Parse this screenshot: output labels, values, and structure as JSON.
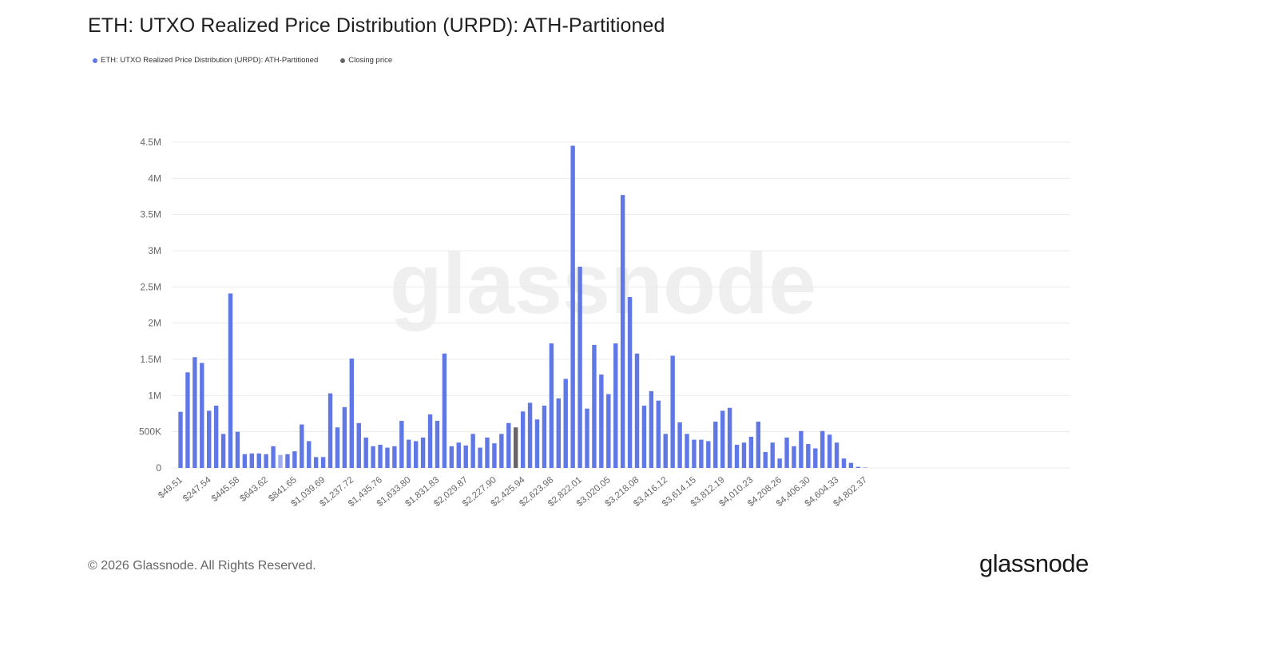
{
  "header": {
    "title": "ETH: UTXO Realized Price Distribution (URPD): ATH-Partitioned"
  },
  "legend": {
    "series_label": "ETH: UTXO Realized Price Distribution (URPD): ATH-Partitioned",
    "closing_label": "Closing price"
  },
  "watermark": "glassnode",
  "footer": {
    "copyright": "© 2026 Glassnode. All Rights Reserved.",
    "logo": "glassnode"
  },
  "colors": {
    "bar": "#6078E6",
    "bar_light": "#9FAEF0",
    "closing": "#666666",
    "grid": "#ececec",
    "axis_text": "#666666",
    "watermark": "#efefef"
  },
  "chart_data": {
    "type": "bar",
    "title": "ETH: UTXO Realized Price Distribution (URPD): ATH-Partitioned",
    "xlabel": "",
    "ylabel": "",
    "ylim": [
      0,
      4500000
    ],
    "grid": true,
    "legend_position": "top-left",
    "y_ticks": [
      {
        "value": 0,
        "label": "0"
      },
      {
        "value": 500000,
        "label": "500K"
      },
      {
        "value": 1000000,
        "label": "1M"
      },
      {
        "value": 1500000,
        "label": "1.5M"
      },
      {
        "value": 2000000,
        "label": "2M"
      },
      {
        "value": 2500000,
        "label": "2.5M"
      },
      {
        "value": 3000000,
        "label": "3M"
      },
      {
        "value": 3500000,
        "label": "3.5M"
      },
      {
        "value": 4000000,
        "label": "4M"
      },
      {
        "value": 4500000,
        "label": "4.5M"
      }
    ],
    "x_tick_labels": [
      "$49.51",
      "$247.54",
      "$445.58",
      "$643.62",
      "$841.65",
      "$1,039.69",
      "$1,237.72",
      "$1,435.76",
      "$1,633.80",
      "$1,831.83",
      "$2,029.87",
      "$2,227.90",
      "$2,425.94",
      "$2,623.98",
      "$2,822.01",
      "$3,020.05",
      "$3,218.08",
      "$3,416.12",
      "$3,614.15",
      "$3,812.19",
      "$4,010.23",
      "$4,208.26",
      "$4,406.30",
      "$4,604.33",
      "$4,802.37"
    ],
    "bucket_width": 49.5,
    "bucket_start": 49.51,
    "closing_price_index": 47,
    "highlight_indices": [
      14
    ],
    "values": [
      775000,
      1320000,
      1530000,
      1450000,
      790000,
      860000,
      470000,
      2410000,
      500000,
      190000,
      200000,
      200000,
      190000,
      300000,
      180000,
      190000,
      230000,
      600000,
      370000,
      150000,
      150000,
      1030000,
      560000,
      840000,
      1510000,
      620000,
      420000,
      300000,
      320000,
      280000,
      300000,
      650000,
      390000,
      370000,
      420000,
      740000,
      650000,
      1580000,
      300000,
      350000,
      310000,
      470000,
      280000,
      420000,
      340000,
      470000,
      620000,
      560000,
      780000,
      900000,
      670000,
      860000,
      1720000,
      960000,
      1230000,
      4450000,
      2780000,
      820000,
      1700000,
      1290000,
      1020000,
      1720000,
      3770000,
      2360000,
      1580000,
      860000,
      1060000,
      930000,
      470000,
      1550000,
      630000,
      470000,
      390000,
      390000,
      370000,
      640000,
      790000,
      830000,
      320000,
      350000,
      430000,
      640000,
      220000,
      350000,
      130000,
      420000,
      300000,
      510000,
      330000,
      270000,
      510000,
      460000,
      350000,
      130000,
      70000,
      15000,
      5000
    ]
  }
}
